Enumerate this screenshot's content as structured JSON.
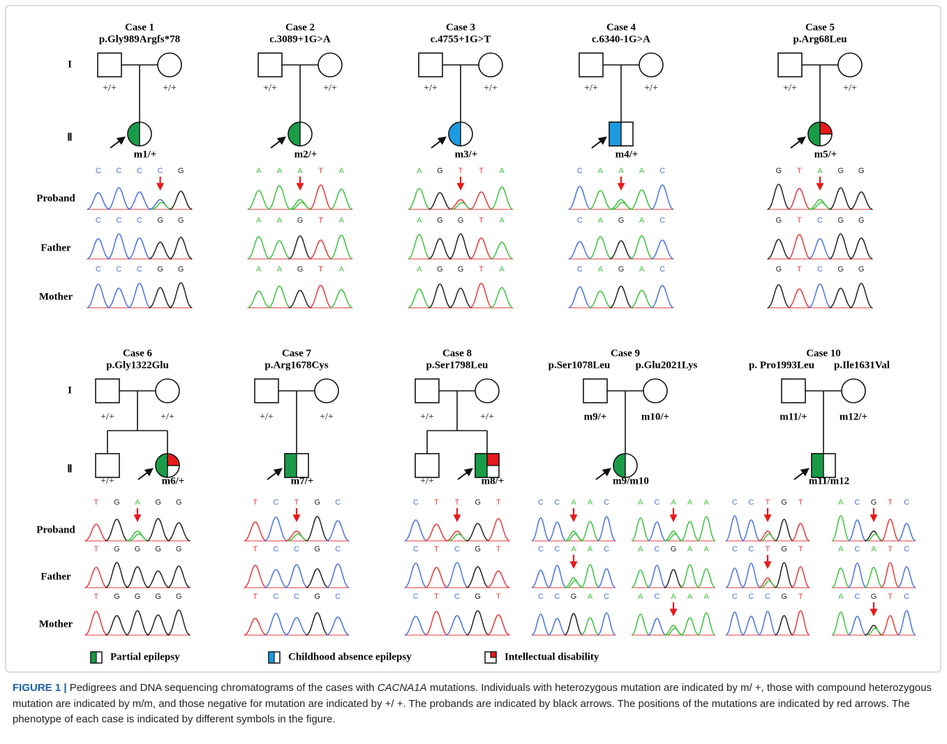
{
  "rows": [
    {
      "generation_labels": [
        "I",
        "Ⅱ"
      ],
      "trace_labels": [
        "Proband",
        "Father",
        "Mother"
      ],
      "cases": [
        {
          "title": "Case 1",
          "mutations": [
            "p.Gly989Argfs*78"
          ],
          "father_genotype": "+/+",
          "mother_genotype": "+/+",
          "proband_genotype": "m1/+",
          "sequences": [
            [
              [
                "C",
                "C",
                "C",
                "C",
                "G"
              ],
              [
                "C",
                "C",
                "C",
                "G",
                "G"
              ],
              [
                "C",
                "C",
                "C",
                "G",
                "G"
              ]
            ]
          ]
        },
        {
          "title": "Case 2",
          "mutations": [
            "c.3089+1G>A"
          ],
          "father_genotype": "+/+",
          "mother_genotype": "+/+",
          "proband_genotype": "m2/+",
          "sequences": [
            [
              [
                "A",
                "A",
                "A",
                "T",
                "A"
              ],
              [
                "A",
                "A",
                "G",
                "T",
                "A"
              ],
              [
                "A",
                "A",
                "G",
                "T",
                "A"
              ]
            ]
          ]
        },
        {
          "title": "Case 3",
          "mutations": [
            "c.4755+1G>T"
          ],
          "father_genotype": "+/+",
          "mother_genotype": "+/+",
          "proband_genotype": "m3/+",
          "sequences": [
            [
              [
                "A",
                "G",
                "T",
                "T",
                "A"
              ],
              [
                "A",
                "G",
                "G",
                "T",
                "A"
              ],
              [
                "A",
                "G",
                "G",
                "T",
                "A"
              ]
            ]
          ]
        },
        {
          "title": "Case 4",
          "mutations": [
            "c.6340-1G>A"
          ],
          "father_genotype": "+/+",
          "mother_genotype": "+/+",
          "proband_genotype": "m4/+",
          "sequences": [
            [
              [
                "C",
                "A",
                "A",
                "A",
                "C"
              ],
              [
                "C",
                "A",
                "G",
                "A",
                "C"
              ],
              [
                "C",
                "A",
                "G",
                "A",
                "C"
              ]
            ]
          ]
        },
        {
          "title": "Case 5",
          "mutations": [
            "p.Arg68Leu"
          ],
          "father_genotype": "+/+",
          "mother_genotype": "+/+",
          "proband_genotype": "m5/+",
          "sequences": [
            [
              [
                "G",
                "T",
                "A",
                "G",
                "G"
              ],
              [
                "G",
                "T",
                "C",
                "G",
                "G"
              ],
              [
                "G",
                "T",
                "C",
                "G",
                "G"
              ]
            ]
          ]
        }
      ]
    },
    {
      "generation_labels": [
        "I",
        "Ⅱ"
      ],
      "trace_labels": [
        "Proband",
        "Father",
        "Mother"
      ],
      "cases": [
        {
          "title": "Case 6",
          "mutations": [
            "p.Gly1322Glu"
          ],
          "father_genotype": "+/+",
          "mother_genotype": "+/+",
          "sibling_genotype": "+/+",
          "proband_genotype": "m6/+",
          "sequences": [
            [
              [
                "T",
                "G",
                "A",
                "G",
                "G"
              ],
              [
                "T",
                "G",
                "G",
                "G",
                "G"
              ],
              [
                "T",
                "G",
                "G",
                "G",
                "G"
              ]
            ]
          ]
        },
        {
          "title": "Case 7",
          "mutations": [
            "p.Arg1678Cys"
          ],
          "father_genotype": "+/+",
          "mother_genotype": "+/+",
          "proband_genotype": "m7/+",
          "sequences": [
            [
              [
                "T",
                "C",
                "T",
                "G",
                "C"
              ],
              [
                "T",
                "C",
                "C",
                "G",
                "C"
              ],
              [
                "T",
                "C",
                "C",
                "G",
                "C"
              ]
            ]
          ]
        },
        {
          "title": "Case 8",
          "mutations": [
            "p.Ser1798Leu"
          ],
          "father_genotype": "+/+",
          "mother_genotype": "+/+",
          "sibling_genotype": "+/+",
          "proband_genotype": "m8/+",
          "sequences": [
            [
              [
                "C",
                "T",
                "T",
                "G",
                "T"
              ],
              [
                "C",
                "T",
                "C",
                "G",
                "T"
              ],
              [
                "C",
                "T",
                "C",
                "G",
                "T"
              ]
            ]
          ]
        },
        {
          "title": "Case 9",
          "mutations": [
            "p.Ser1078Leu",
            "p.Glu2021Lys"
          ],
          "father_genotype": "m9/+",
          "mother_genotype": "m10/+",
          "proband_genotype": "m9/m10",
          "sequences": [
            [
              [
                "C",
                "C",
                "A",
                "A",
                "C"
              ],
              [
                "C",
                "C",
                "A",
                "A",
                "C"
              ],
              [
                "C",
                "C",
                "G",
                "A",
                "C"
              ]
            ],
            [
              [
                "A",
                "C",
                "A",
                "A",
                "A"
              ],
              [
                "A",
                "C",
                "G",
                "A",
                "A"
              ],
              [
                "A",
                "C",
                "A",
                "A",
                "A"
              ]
            ]
          ]
        },
        {
          "title": "Case 10",
          "mutations": [
            "p. Pro1993Leu",
            "p.Ile1631Val"
          ],
          "father_genotype": "m11/+",
          "mother_genotype": "m12/+",
          "proband_genotype": "m11/m12",
          "sequences": [
            [
              [
                "C",
                "C",
                "T",
                "G",
                "T"
              ],
              [
                "C",
                "C",
                "T",
                "G",
                "T"
              ],
              [
                "C",
                "C",
                "C",
                "G",
                "T"
              ]
            ],
            [
              [
                "A",
                "C",
                "G",
                "T",
                "C"
              ],
              [
                "A",
                "C",
                "A",
                "T",
                "C"
              ],
              [
                "A",
                "C",
                "G",
                "T",
                "C"
              ]
            ]
          ]
        }
      ]
    }
  ],
  "legend": [
    "Partial epilepsy",
    "Childhood absence epilepsy",
    "Intellectual disability"
  ],
  "caption": {
    "label": "FIGURE 1 |",
    "parts": [
      " Pedigrees and DNA sequencing chromatograms of the cases with ",
      "CACNA1A",
      " mutations. Individuals with heterozygous mutation are indicated by m/ +, those with compound heterozygous mutation are indicated by m/m, and those negative for mutation are indicated by +/ +. The probands are indicated by black arrows. The positions of the mutations are indicated by red arrows. The phenotype of each case is indicated by different symbols in the figure."
    ]
  }
}
